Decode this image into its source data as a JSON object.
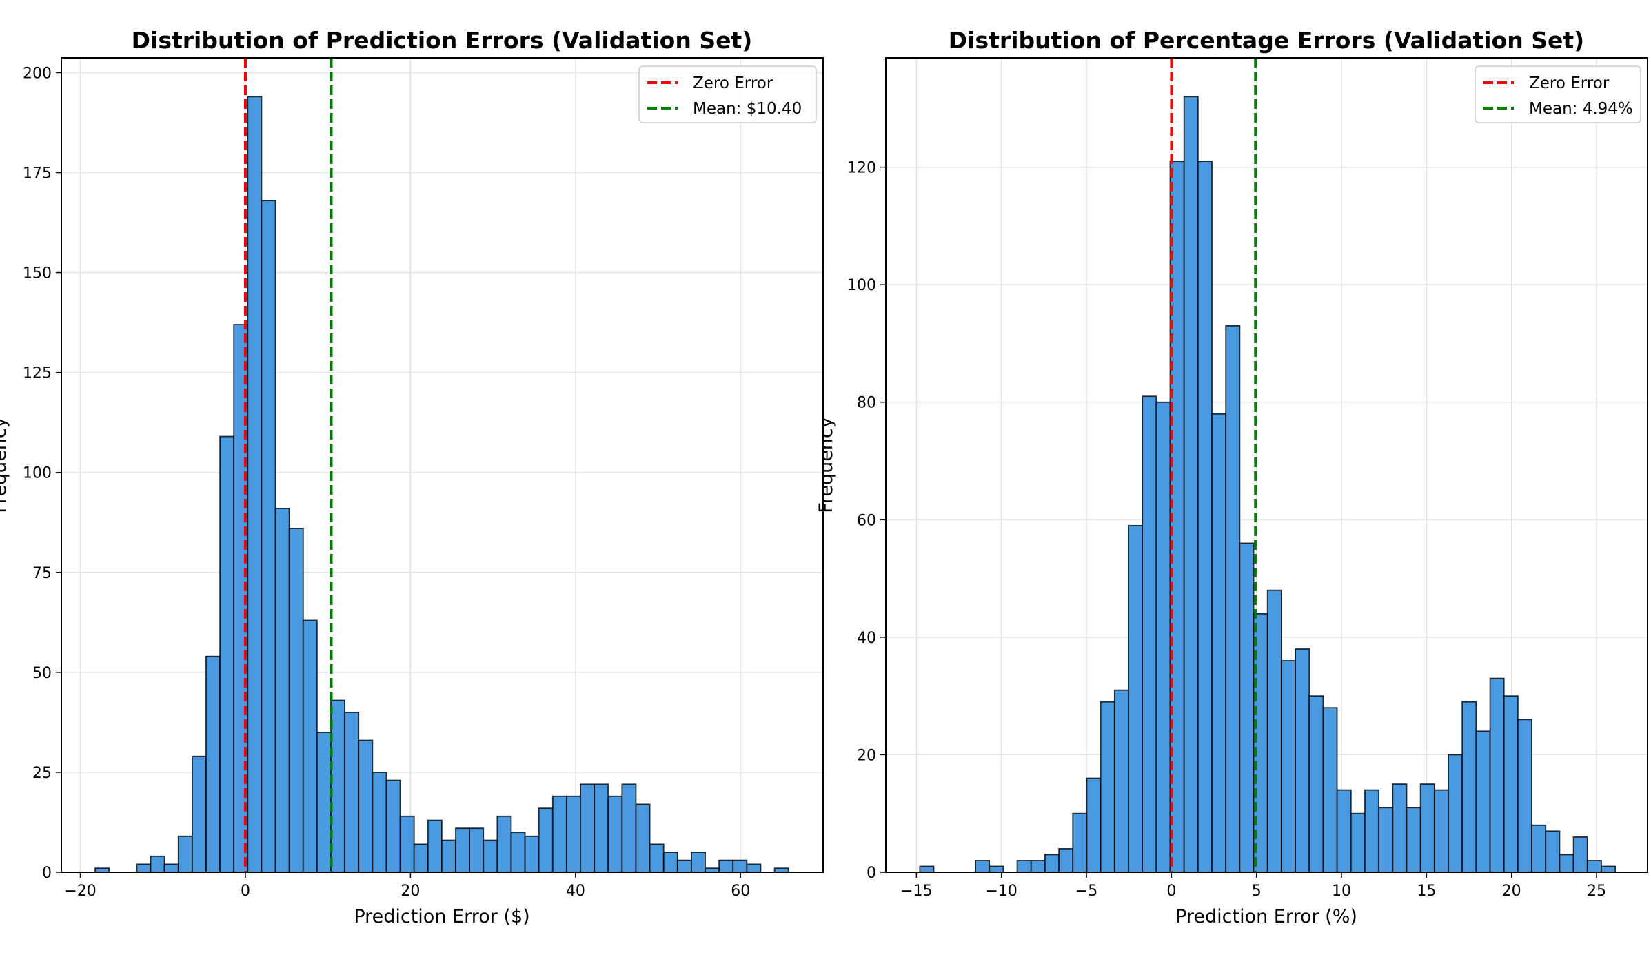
{
  "chart_data": [
    {
      "type": "bar",
      "subtype": "histogram",
      "title": "Distribution of Prediction Errors (Validation Set)",
      "xlabel": "Prediction Error ($)",
      "ylabel": "Frequency",
      "xlim": [
        -22.3,
        70
      ],
      "ylim": [
        0,
        203.7
      ],
      "xticks": [
        -20,
        0,
        20,
        40,
        60
      ],
      "yticks": [
        0,
        25,
        50,
        75,
        100,
        125,
        150,
        175,
        200
      ],
      "grid": true,
      "bin_start": -18.2,
      "bin_width": 1.68,
      "values": [
        1,
        0,
        0,
        2,
        4,
        2,
        9,
        29,
        54,
        109,
        137,
        194,
        168,
        91,
        86,
        63,
        35,
        43,
        40,
        33,
        25,
        23,
        14,
        7,
        13,
        8,
        11,
        11,
        8,
        14,
        10,
        9,
        16,
        19,
        19,
        22,
        22,
        19,
        22,
        17,
        7,
        5,
        3,
        5,
        1,
        3,
        3,
        2,
        0,
        1
      ],
      "bar_color": "#4a9ae1",
      "edge_color": "#000000",
      "vlines": [
        {
          "x": 0,
          "label": "Zero Error",
          "color": "#ff0000"
        },
        {
          "x": 10.4,
          "label": "Mean: $10.40",
          "color": "#008000"
        }
      ],
      "legend_position": "top-right"
    },
    {
      "type": "bar",
      "subtype": "histogram",
      "title": "Distribution of Percentage Errors (Validation Set)",
      "xlabel": "Prediction Error (%)",
      "ylabel": "Frequency",
      "xlim": [
        -16.8,
        28.0
      ],
      "ylim": [
        0,
        138.6
      ],
      "xticks": [
        -15,
        -10,
        -5,
        0,
        5,
        10,
        15,
        20,
        25
      ],
      "yticks": [
        0,
        20,
        40,
        60,
        80,
        100,
        120
      ],
      "grid": true,
      "bin_start": -14.8,
      "bin_width": 0.818,
      "values": [
        1,
        0,
        0,
        0,
        2,
        1,
        0,
        2,
        2,
        3,
        4,
        10,
        16,
        29,
        31,
        59,
        81,
        80,
        121,
        132,
        121,
        78,
        93,
        56,
        44,
        48,
        36,
        38,
        30,
        28,
        14,
        10,
        14,
        11,
        15,
        11,
        15,
        14,
        20,
        29,
        24,
        33,
        30,
        26,
        8,
        7,
        3,
        6,
        2,
        1
      ],
      "bar_color": "#4a9ae1",
      "edge_color": "#000000",
      "vlines": [
        {
          "x": 0,
          "label": "Zero Error",
          "color": "#ff0000"
        },
        {
          "x": 4.94,
          "label": "Mean: 4.94%",
          "color": "#008000"
        }
      ],
      "legend_position": "top-right"
    }
  ]
}
